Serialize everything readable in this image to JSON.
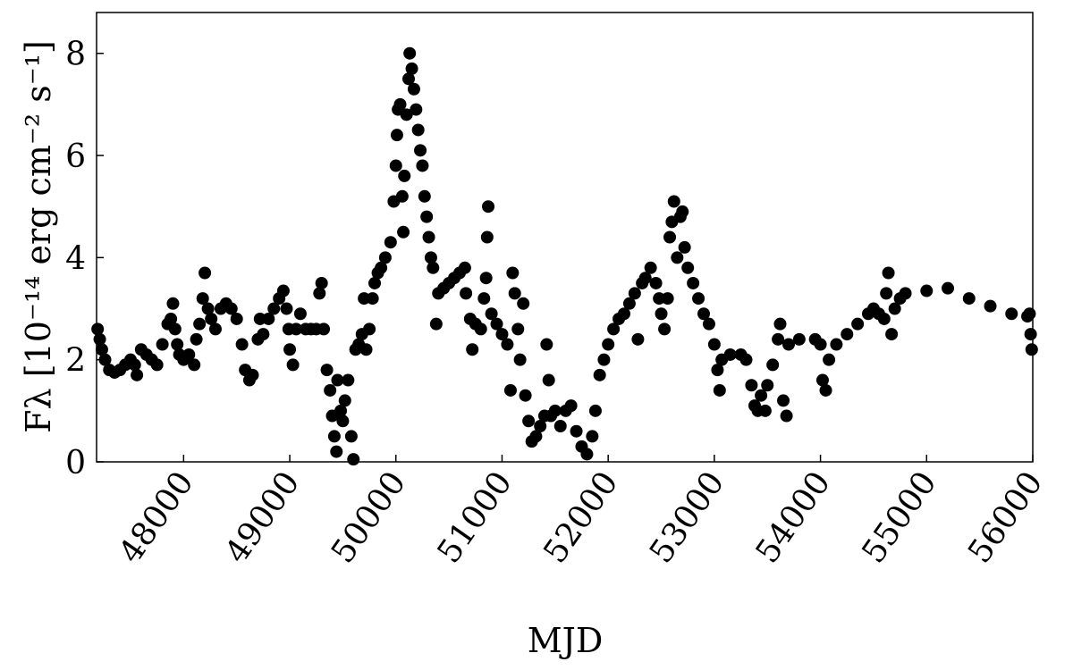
{
  "chart_data": {
    "type": "scatter",
    "xlabel": "MJD",
    "ylabel": "Fλ [10⁻¹⁴ erg cm⁻² s⁻¹]",
    "color": "#000000",
    "xlim": [
      47180,
      56000
    ],
    "xticks": [
      48000,
      49000,
      50000,
      51000,
      52000,
      53000,
      54000,
      55000,
      56000
    ],
    "ylim": [
      0,
      8.8
    ],
    "yticks": [
      0,
      2,
      4,
      6,
      8
    ],
    "x": [
      47190,
      47210,
      47230,
      47260,
      47300,
      47350,
      47400,
      47450,
      47500,
      47540,
      47560,
      47600,
      47650,
      47700,
      47750,
      47800,
      47850,
      47880,
      47900,
      47920,
      47940,
      47960,
      48000,
      48050,
      48100,
      48120,
      48150,
      48180,
      48200,
      48230,
      48260,
      48300,
      48350,
      48400,
      48450,
      48500,
      48550,
      48580,
      48620,
      48650,
      48700,
      48720,
      48750,
      48800,
      48850,
      48900,
      48940,
      48970,
      48990,
      49000,
      49030,
      49060,
      49100,
      49150,
      49200,
      49250,
      49280,
      49300,
      49320,
      49350,
      49380,
      49400,
      49420,
      49440,
      49450,
      49480,
      49500,
      49520,
      49550,
      49580,
      49600,
      49620,
      49650,
      49680,
      49700,
      49720,
      49750,
      49780,
      49800,
      49830,
      49860,
      49900,
      49950,
      49980,
      50000,
      50010,
      50020,
      50040,
      50060,
      50070,
      50080,
      50100,
      50120,
      50130,
      50150,
      50170,
      50190,
      50210,
      50230,
      50250,
      50270,
      50290,
      50310,
      50330,
      50350,
      50380,
      50400,
      50450,
      50500,
      50550,
      50600,
      50650,
      50660,
      50700,
      50720,
      50750,
      50800,
      50830,
      50850,
      50860,
      50870,
      50900,
      50950,
      51000,
      51050,
      51080,
      51100,
      51120,
      51150,
      51170,
      51200,
      51220,
      51250,
      51280,
      51320,
      51360,
      51400,
      51420,
      51440,
      51460,
      51500,
      51550,
      51600,
      51650,
      51700,
      51750,
      51800,
      51850,
      51880,
      51920,
      51960,
      52000,
      52050,
      52100,
      52150,
      52200,
      52250,
      52280,
      52320,
      52350,
      52400,
      52450,
      52480,
      52500,
      52530,
      52560,
      52580,
      52600,
      52620,
      52650,
      52680,
      52700,
      52720,
      52750,
      52800,
      52850,
      52900,
      52950,
      53000,
      53030,
      53050,
      53070,
      53150,
      53250,
      53300,
      53350,
      53380,
      53410,
      53440,
      53480,
      53500,
      53550,
      53600,
      53620,
      53650,
      53680,
      53700,
      53800,
      53950,
      54000,
      54020,
      54050,
      54080,
      54150,
      54250,
      54350,
      54450,
      54500,
      54550,
      54600,
      54620,
      54640,
      54670,
      54700,
      54750,
      54800,
      55000,
      55200,
      55400,
      55600,
      55800,
      55950,
      55970,
      55980,
      55990
    ],
    "values": [
      2.6,
      2.4,
      2.2,
      2.0,
      1.8,
      1.75,
      1.8,
      1.9,
      2.0,
      1.9,
      1.7,
      2.2,
      2.1,
      2.0,
      1.9,
      2.3,
      2.7,
      2.8,
      3.1,
      2.6,
      2.3,
      2.1,
      2.0,
      2.1,
      1.9,
      2.4,
      2.7,
      3.2,
      3.7,
      3.0,
      2.8,
      2.6,
      3.0,
      3.1,
      3.0,
      2.8,
      2.3,
      1.8,
      1.6,
      1.7,
      2.4,
      2.8,
      2.5,
      2.8,
      3.0,
      3.2,
      3.35,
      3.0,
      2.6,
      2.2,
      1.9,
      2.6,
      2.9,
      2.6,
      2.6,
      2.6,
      3.3,
      3.5,
      2.6,
      1.8,
      1.4,
      0.9,
      0.5,
      0.2,
      1.6,
      1.0,
      0.8,
      1.2,
      1.6,
      0.5,
      0.05,
      2.2,
      2.3,
      2.5,
      3.2,
      2.2,
      2.6,
      3.2,
      3.5,
      3.7,
      3.8,
      4.0,
      4.3,
      5.1,
      5.8,
      6.4,
      6.9,
      7.0,
      5.2,
      4.5,
      5.6,
      6.8,
      7.5,
      8.0,
      7.7,
      7.3,
      6.9,
      6.5,
      6.1,
      5.8,
      5.2,
      4.8,
      4.4,
      4.0,
      3.8,
      2.7,
      3.3,
      3.4,
      3.5,
      3.6,
      3.7,
      3.8,
      3.3,
      2.8,
      2.2,
      2.7,
      2.6,
      3.2,
      3.6,
      4.4,
      5.0,
      2.9,
      2.7,
      2.5,
      2.3,
      1.4,
      3.7,
      3.3,
      2.6,
      2.0,
      3.1,
      1.3,
      0.8,
      0.4,
      0.5,
      0.7,
      0.9,
      2.3,
      1.6,
      0.9,
      1.0,
      0.7,
      1.0,
      1.1,
      0.6,
      0.3,
      0.15,
      0.5,
      1.0,
      1.7,
      2.0,
      2.3,
      2.6,
      2.8,
      2.9,
      3.1,
      3.3,
      2.4,
      3.5,
      3.6,
      3.8,
      3.5,
      3.2,
      2.9,
      2.6,
      3.2,
      4.4,
      4.7,
      5.1,
      4.0,
      4.8,
      4.9,
      4.2,
      3.8,
      3.5,
      3.2,
      2.9,
      2.7,
      2.3,
      1.8,
      1.4,
      2.0,
      2.1,
      2.1,
      2.0,
      1.5,
      1.1,
      1.0,
      1.3,
      1.0,
      1.5,
      1.9,
      2.4,
      2.7,
      1.2,
      0.9,
      2.3,
      2.4,
      2.4,
      2.3,
      1.6,
      1.4,
      2.0,
      2.3,
      2.5,
      2.7,
      2.9,
      3.0,
      2.9,
      2.8,
      3.3,
      3.7,
      2.5,
      3.0,
      3.2,
      3.3,
      3.35,
      3.4,
      3.2,
      3.05,
      2.9,
      2.85,
      2.9,
      2.5,
      2.2
    ]
  }
}
